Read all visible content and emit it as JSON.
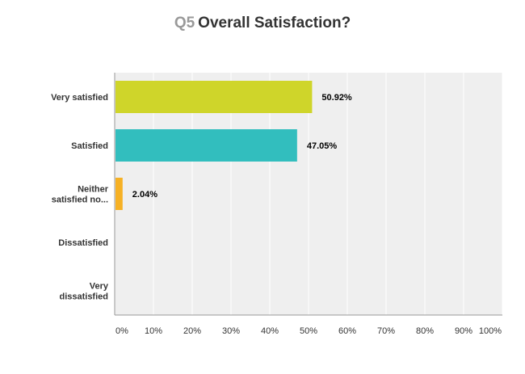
{
  "question_number": "Q5",
  "question_title": "Overall Satisfaction?",
  "chart_data": {
    "type": "bar",
    "orientation": "horizontal",
    "categories": [
      [
        "Very satisfied"
      ],
      [
        "Satisfied"
      ],
      [
        "Neither",
        "satisfied no..."
      ],
      [
        "Dissatisfied"
      ],
      [
        "Very",
        "dissatisfied"
      ]
    ],
    "values": [
      50.92,
      47.05,
      2.04,
      null,
      null
    ],
    "value_labels": [
      "50.92%",
      "47.05%",
      "2.04%",
      "",
      ""
    ],
    "colors": [
      "#cfd52a",
      "#32bebe",
      "#f6b125",
      "#cccccc",
      "#cccccc"
    ],
    "xlim": [
      0,
      100
    ],
    "xticks": [
      "0%",
      "10%",
      "20%",
      "30%",
      "40%",
      "50%",
      "60%",
      "70%",
      "80%",
      "90%",
      "100%"
    ],
    "grid": true,
    "legend": "none"
  },
  "colors": {
    "plot_background": "#efefef",
    "gridline": "#ffffff",
    "axis": "#999999",
    "text": "#333333"
  }
}
